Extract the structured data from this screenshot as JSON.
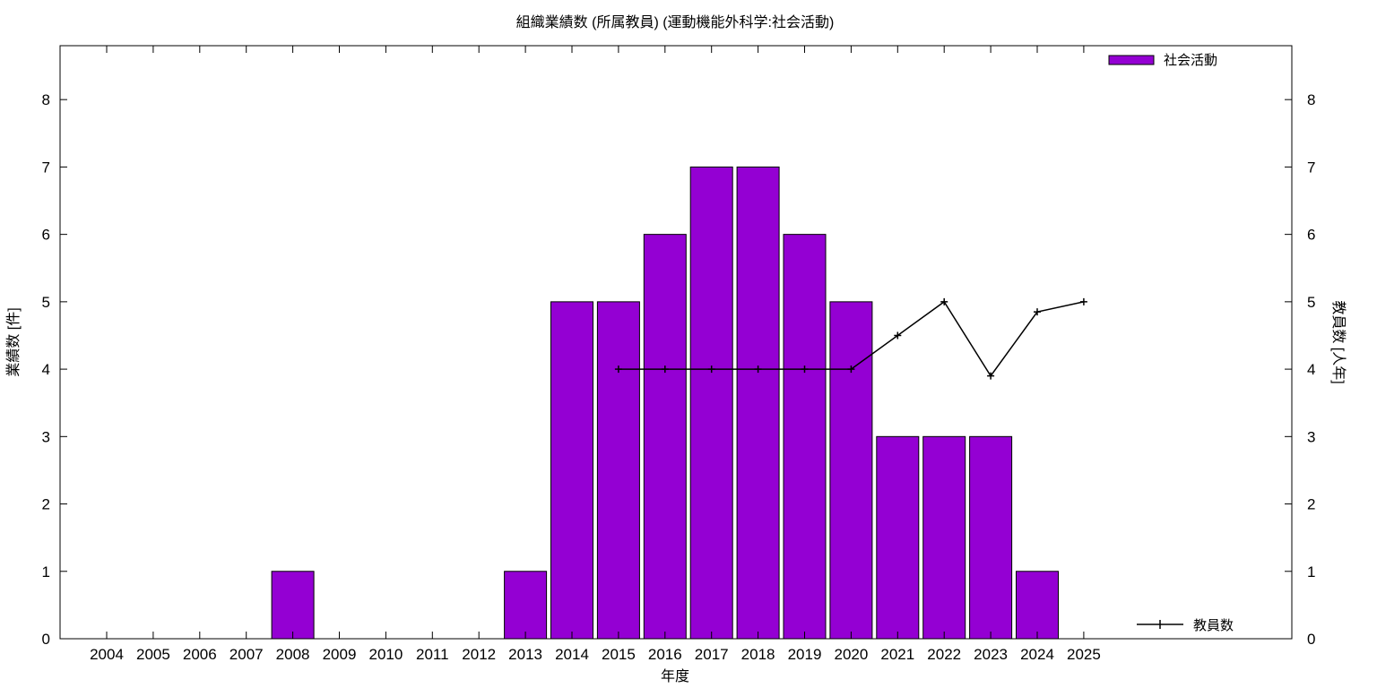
{
  "chart_data": {
    "type": "bar",
    "title": "組織業績数 (所属教員) (運動機能外科学:社会活動)",
    "xlabel": "年度",
    "ylabel": "業績数 [件]",
    "y2label": "教員数 [人年]",
    "categories": [
      "2004",
      "2005",
      "2006",
      "2007",
      "2008",
      "2009",
      "2010",
      "2011",
      "2012",
      "2013",
      "2014",
      "2015",
      "2016",
      "2017",
      "2018",
      "2019",
      "2020",
      "2021",
      "2022",
      "2023",
      "2024",
      "2025"
    ],
    "ylim": [
      0,
      8.8
    ],
    "y2lim": [
      0,
      8.8
    ],
    "yticks": [
      0,
      1,
      2,
      3,
      4,
      5,
      6,
      7,
      8
    ],
    "y2ticks": [
      0,
      1,
      2,
      3,
      4,
      5,
      6,
      7,
      8
    ],
    "grid": false,
    "series": [
      {
        "name": "社会活動",
        "kind": "bar",
        "axis": "left",
        "color": "#9400d3",
        "values": [
          0,
          0,
          0,
          0,
          1,
          0,
          0,
          0,
          0,
          1,
          5,
          5,
          6,
          7,
          7,
          6,
          5,
          3,
          3,
          3,
          1,
          0
        ]
      },
      {
        "name": "教員数",
        "kind": "line",
        "axis": "right",
        "color": "#000000",
        "x": [
          "2015",
          "2016",
          "2017",
          "2018",
          "2019",
          "2020",
          "2021",
          "2022",
          "2023",
          "2024",
          "2025"
        ],
        "values": [
          4,
          4,
          4,
          4,
          4,
          4,
          4.5,
          5,
          3.9,
          4.85,
          5
        ]
      }
    ],
    "legend": [
      {
        "label": "社会活動",
        "placement": "top-right"
      },
      {
        "label": "教員数",
        "placement": "bottom-right"
      }
    ]
  }
}
